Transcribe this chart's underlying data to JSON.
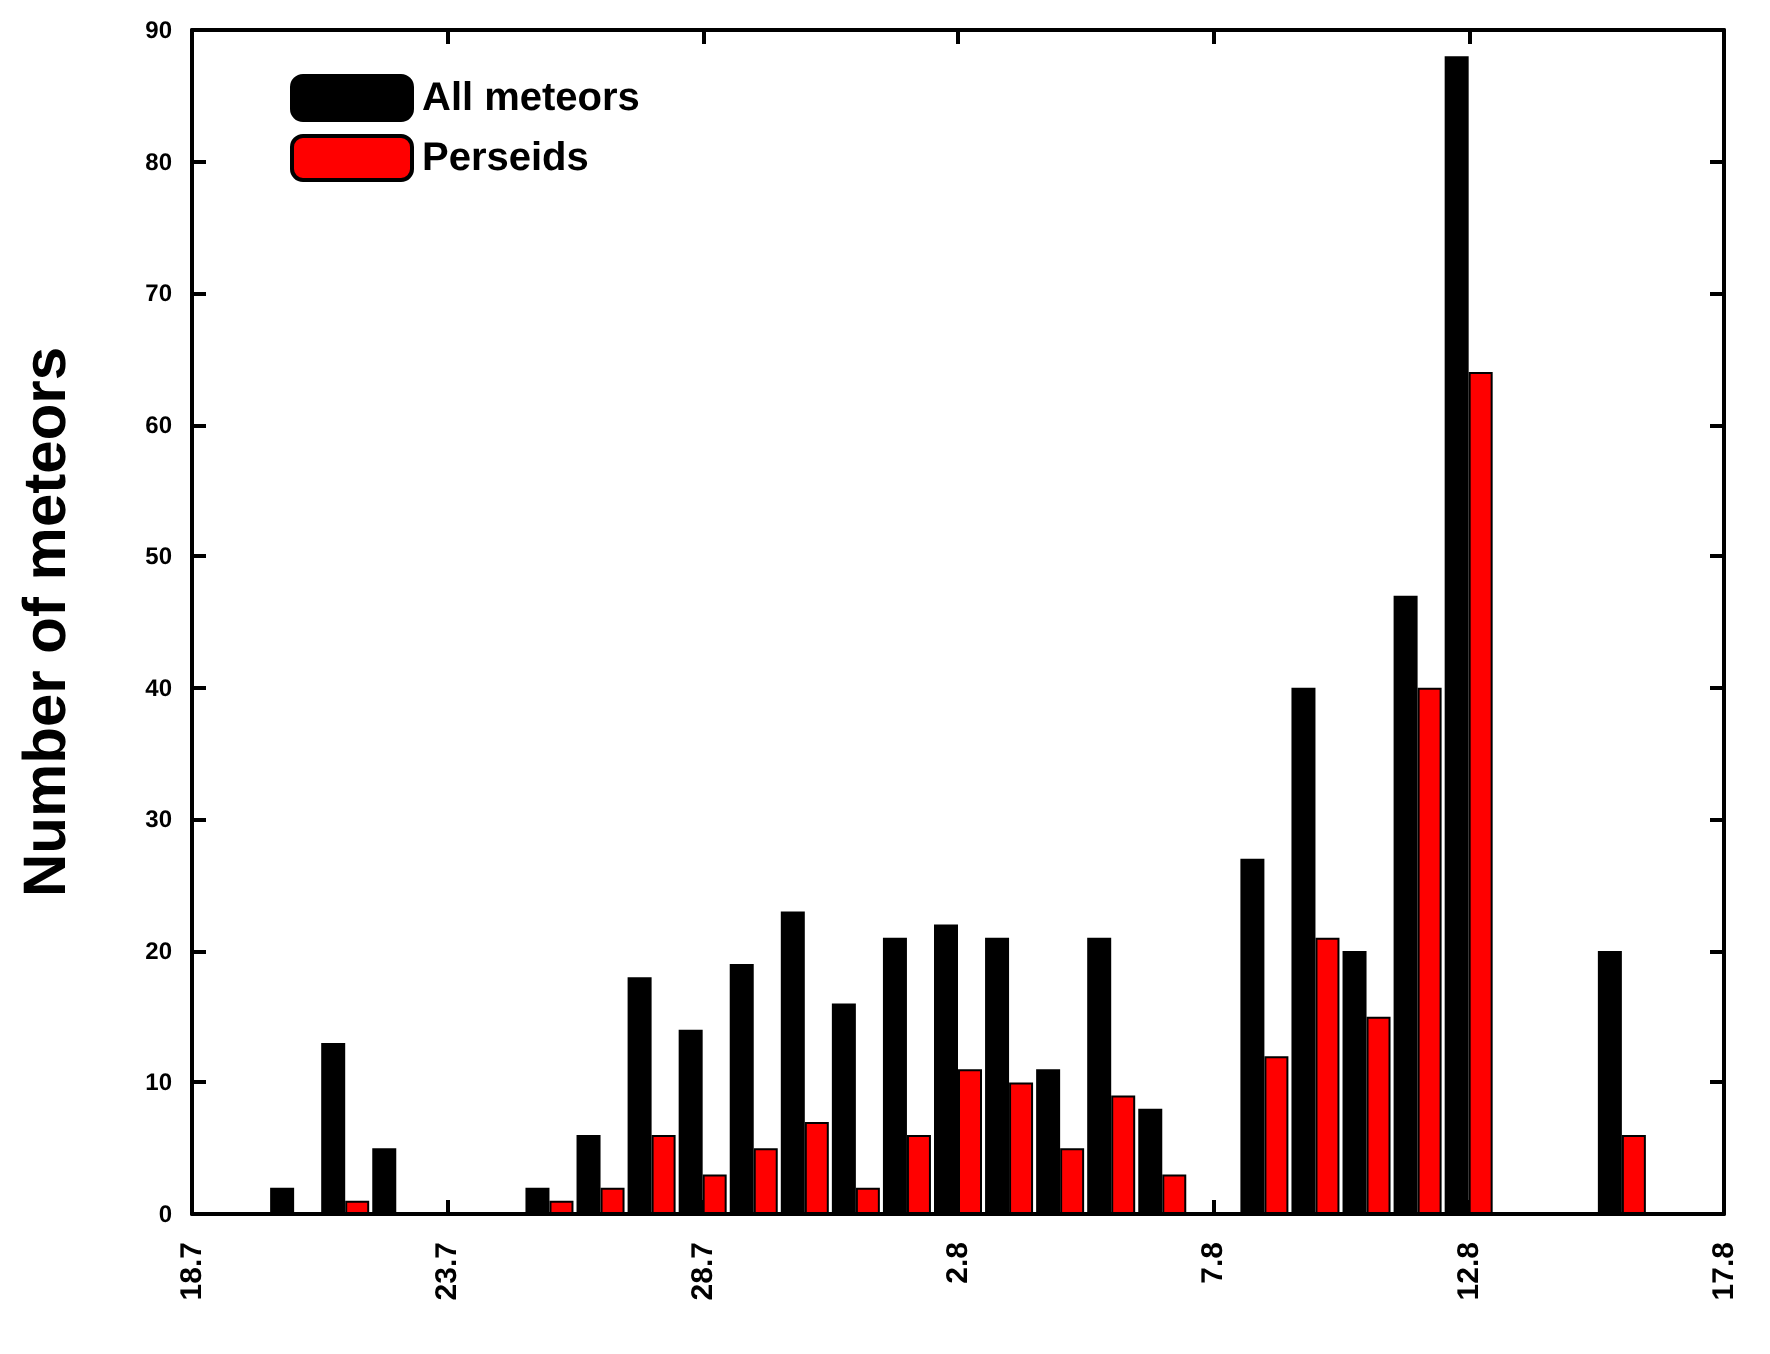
{
  "chart_data": {
    "type": "bar",
    "ylabel": "Number of meteors",
    "x": [
      "--07-20",
      "--07-21",
      "--07-22",
      "--07-25",
      "--07-26",
      "--07-27",
      "--07-28",
      "--07-29",
      "--07-30",
      "--07-31",
      "--08-01",
      "--08-02",
      "--08-03",
      "--08-04",
      "--08-05",
      "--08-06",
      "--08-08",
      "--08-09",
      "--08-10",
      "--08-11",
      "--08-12",
      "--08-15"
    ],
    "series": [
      {
        "name": "All meteors",
        "color": "#000000",
        "values": [
          2,
          13,
          5,
          2,
          6,
          18,
          14,
          19,
          23,
          16,
          21,
          22,
          21,
          11,
          21,
          8,
          27,
          40,
          20,
          47,
          88,
          20
        ]
      },
      {
        "name": "Perseids",
        "color": "#ff0000",
        "values": [
          null,
          1,
          null,
          1,
          2,
          6,
          3,
          5,
          7,
          2,
          6,
          11,
          10,
          5,
          9,
          3,
          12,
          21,
          15,
          40,
          64,
          6
        ]
      }
    ],
    "xlim": [
      "--07-18",
      "--08-17"
    ],
    "xticks": [
      {
        "value": "--07-18",
        "label": "18.7"
      },
      {
        "value": "--07-23",
        "label": "23.7"
      },
      {
        "value": "--07-28",
        "label": "28.7"
      },
      {
        "value": "--08-02",
        "label": "2.8"
      },
      {
        "value": "--08-07",
        "label": "7.8"
      },
      {
        "value": "--08-12",
        "label": "12.8"
      },
      {
        "value": "--08-17",
        "label": "17.8"
      }
    ],
    "ylim": [
      0,
      90
    ],
    "yticks": [
      0,
      10,
      20,
      30,
      40,
      50,
      60,
      70,
      80,
      90
    ],
    "legend": "top left",
    "grid": false
  }
}
